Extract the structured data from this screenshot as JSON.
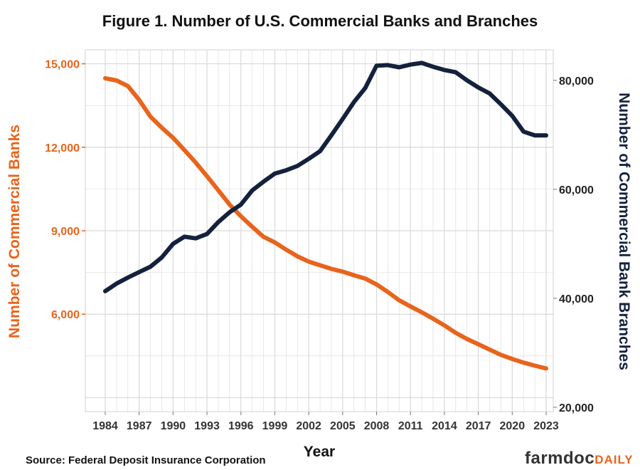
{
  "chart_data": {
    "type": "line",
    "title": "Figure 1. Number of U.S. Commercial Banks and Branches",
    "xlabel": "Year",
    "ylabel_left": "Number of Commercial Banks",
    "ylabel_right": "Number of Commercial Bank Branches",
    "x_ticks": [
      "1984",
      "1987",
      "1990",
      "1993",
      "1996",
      "1999",
      "2002",
      "2005",
      "2008",
      "2011",
      "2014",
      "2017",
      "2020",
      "2023"
    ],
    "y_left_ticks": [
      "6,000",
      "9,000",
      "12,000",
      "15,000"
    ],
    "y_right_ticks": [
      "20,000",
      "40,000",
      "60,000",
      "80,000"
    ],
    "xlim": [
      1984,
      2023
    ],
    "ylim_left": [
      2500,
      15500
    ],
    "ylim_right": [
      19200,
      85600
    ],
    "colors": {
      "banks": "#e8641c",
      "branches": "#14213d",
      "grid": "#d9d9d9"
    },
    "x": [
      1984,
      1985,
      1986,
      1987,
      1988,
      1989,
      1990,
      1991,
      1992,
      1993,
      1994,
      1995,
      1996,
      1997,
      1998,
      1999,
      2000,
      2001,
      2002,
      2003,
      2004,
      2005,
      2006,
      2007,
      2008,
      2009,
      2010,
      2011,
      2012,
      2013,
      2014,
      2015,
      2016,
      2017,
      2018,
      2019,
      2020,
      2021,
      2022,
      2023
    ],
    "series": [
      {
        "name": "Number of Commercial Banks",
        "axis": "left",
        "values": [
          14480,
          14400,
          14200,
          13700,
          13100,
          12700,
          12340,
          11900,
          11450,
          10960,
          10450,
          9940,
          9520,
          9140,
          8780,
          8580,
          8320,
          8080,
          7890,
          7760,
          7630,
          7530,
          7400,
          7280,
          7070,
          6800,
          6500,
          6280,
          6070,
          5840,
          5600,
          5330,
          5110,
          4920,
          4730,
          4540,
          4390,
          4260,
          4150,
          4050
        ]
      },
      {
        "name": "Number of Commercial Bank Branches",
        "axis": "right",
        "values": [
          41300,
          42700,
          43800,
          44800,
          45800,
          47500,
          50000,
          51300,
          51000,
          51800,
          54000,
          55800,
          57200,
          59800,
          61400,
          62900,
          63500,
          64300,
          65600,
          67000,
          69900,
          72900,
          76000,
          78600,
          82700,
          82800,
          82400,
          82900,
          83200,
          82500,
          81900,
          81500,
          80000,
          78700,
          77600,
          75600,
          73500,
          70600,
          69900,
          69900
        ]
      }
    ],
    "source": "Source: Federal Deposit Insurance Corporation",
    "brand": {
      "part1": "farmdoc",
      "part2": "DAILY"
    }
  }
}
